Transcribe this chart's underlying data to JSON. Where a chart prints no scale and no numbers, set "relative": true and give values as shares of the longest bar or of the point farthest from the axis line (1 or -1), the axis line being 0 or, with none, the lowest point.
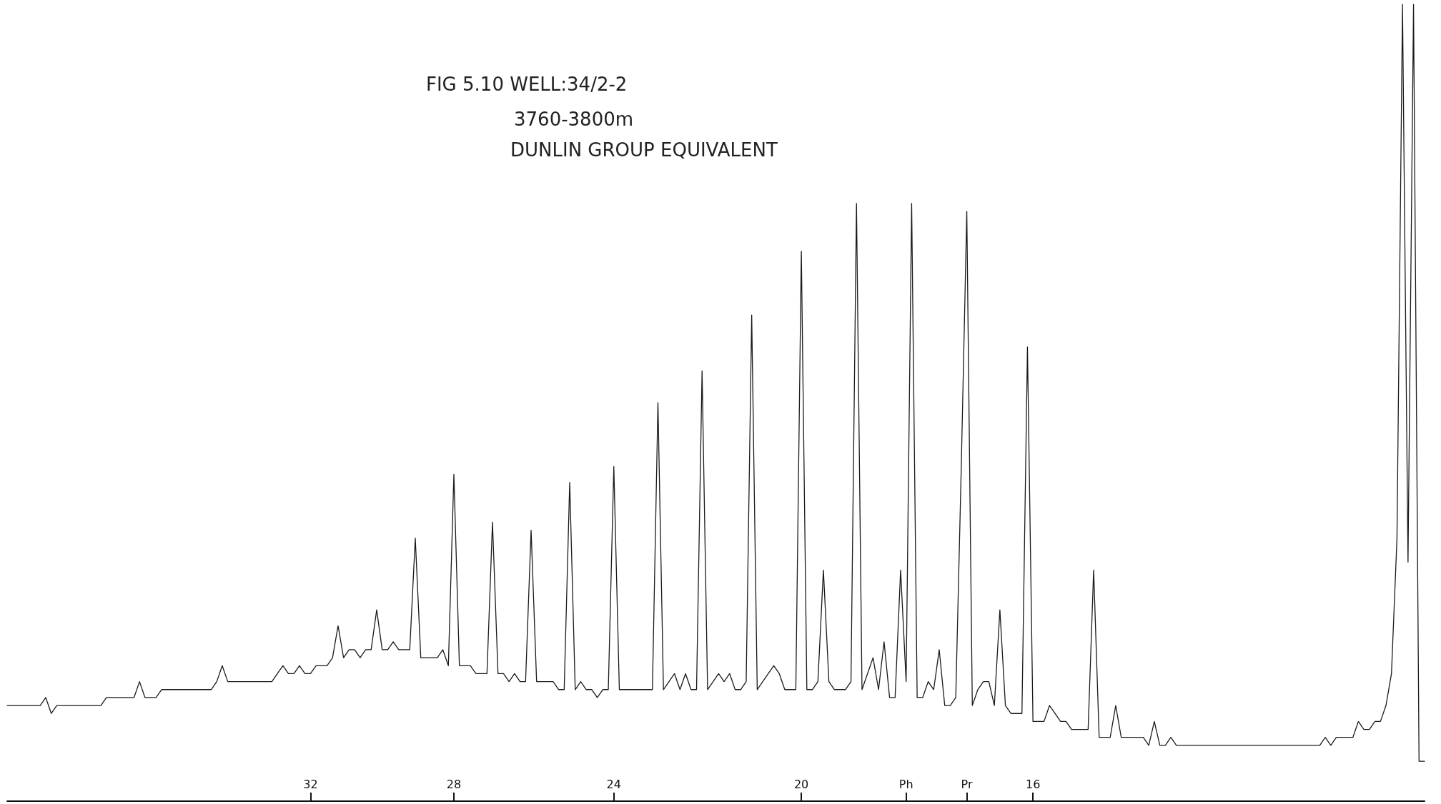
{
  "chart_data": {
    "type": "line",
    "relative": true,
    "marker": "none",
    "title": "FIG 5.10 WELL:34/2-2",
    "subtitle": "3760-3800m",
    "annotations": [
      "DUNLIN GROUP EQUIVALENT"
    ],
    "categories": [
      null,
      null,
      null,
      null,
      null,
      null,
      null,
      null,
      null,
      null,
      null,
      null,
      null,
      null,
      null,
      null,
      null,
      null,
      null,
      null,
      null,
      null,
      null,
      null,
      null,
      null,
      null,
      null,
      null,
      null,
      null,
      null,
      null,
      null,
      null,
      null,
      null,
      null,
      null,
      null,
      null,
      null,
      null,
      null,
      null,
      null,
      null,
      null,
      null,
      null,
      null,
      null,
      null,
      null,
      null,
      "32",
      null,
      null,
      null,
      null,
      null,
      null,
      null,
      null,
      null,
      null,
      null,
      null,
      null,
      null,
      null,
      null,
      null,
      null,
      null,
      null,
      null,
      null,
      null,
      null,
      null,
      "28",
      null,
      null,
      null,
      null,
      null,
      null,
      null,
      null,
      null,
      null,
      null,
      null,
      null,
      null,
      null,
      null,
      null,
      null,
      null,
      null,
      null,
      null,
      null,
      null,
      null,
      null,
      null,
      null,
      "24",
      null,
      null,
      null,
      null,
      null,
      null,
      null,
      null,
      null,
      null,
      null,
      null,
      null,
      null,
      null,
      null,
      null,
      null,
      null,
      null,
      null,
      null,
      null,
      null,
      null,
      null,
      null,
      null,
      null,
      null,
      null,
      null,
      null,
      "20",
      null,
      null,
      null,
      null,
      null,
      null,
      null,
      null,
      null,
      null,
      null,
      null,
      null,
      null,
      null,
      null,
      null,
      null,
      "Ph",
      null,
      null,
      null,
      null,
      null,
      null,
      null,
      null,
      null,
      null,
      "Pr",
      null,
      null,
      null,
      null,
      null,
      null,
      null,
      null,
      null,
      null,
      null,
      "16",
      null,
      null,
      null,
      null,
      null,
      null,
      null,
      null,
      null,
      null,
      null,
      null,
      null,
      null,
      null,
      null,
      null,
      null,
      null,
      null,
      null,
      null,
      null,
      null,
      null,
      null,
      null,
      null,
      null,
      null,
      null,
      null,
      null,
      null,
      null,
      null,
      null,
      null,
      null,
      null,
      null,
      null,
      null,
      null,
      null,
      null,
      null,
      null,
      null,
      null,
      null,
      null,
      null,
      null,
      null,
      null,
      null,
      null,
      null,
      null,
      null,
      null,
      null,
      null,
      null,
      null,
      null,
      null,
      null,
      null,
      null
    ],
    "series": [
      {
        "color": "#1a1a1a",
        "values": [
          0.12,
          0.12,
          0.12,
          0.12,
          0.12,
          0.12,
          0.12,
          0.13,
          0.11,
          0.12,
          0.12,
          0.12,
          0.12,
          0.12,
          0.12,
          0.12,
          0.12,
          0.12,
          0.13,
          0.13,
          0.13,
          0.13,
          0.13,
          0.13,
          0.15,
          0.13,
          0.13,
          0.13,
          0.14,
          0.14,
          0.14,
          0.14,
          0.14,
          0.14,
          0.14,
          0.14,
          0.14,
          0.14,
          0.15,
          0.17,
          0.15,
          0.15,
          0.15,
          0.15,
          0.15,
          0.15,
          0.15,
          0.15,
          0.15,
          0.16,
          0.17,
          0.16,
          0.16,
          0.17,
          0.16,
          0.16,
          0.17,
          0.17,
          0.17,
          0.18,
          0.22,
          0.18,
          0.19,
          0.19,
          0.18,
          0.19,
          0.19,
          0.24,
          0.19,
          0.19,
          0.2,
          0.19,
          0.19,
          0.19,
          0.33,
          0.18,
          0.18,
          0.18,
          0.18,
          0.19,
          0.17,
          0.41,
          0.17,
          0.17,
          0.17,
          0.16,
          0.16,
          0.16,
          0.35,
          0.16,
          0.16,
          0.15,
          0.16,
          0.15,
          0.15,
          0.34,
          0.15,
          0.15,
          0.15,
          0.15,
          0.14,
          0.14,
          0.4,
          0.14,
          0.15,
          0.14,
          0.14,
          0.13,
          0.14,
          0.14,
          0.42,
          0.14,
          0.14,
          0.14,
          0.14,
          0.14,
          0.14,
          0.14,
          0.5,
          0.14,
          0.15,
          0.16,
          0.14,
          0.16,
          0.14,
          0.14,
          0.54,
          0.14,
          0.15,
          0.16,
          0.15,
          0.16,
          0.14,
          0.14,
          0.15,
          0.61,
          0.14,
          0.15,
          0.16,
          0.17,
          0.16,
          0.14,
          0.14,
          0.14,
          0.69,
          0.14,
          0.14,
          0.15,
          0.29,
          0.15,
          0.14,
          0.14,
          0.14,
          0.15,
          0.75,
          0.14,
          0.16,
          0.18,
          0.14,
          0.2,
          0.13,
          0.13,
          0.29,
          0.15,
          0.75,
          0.13,
          0.13,
          0.15,
          0.14,
          0.19,
          0.12,
          0.12,
          0.13,
          0.42,
          0.74,
          0.12,
          0.14,
          0.15,
          0.15,
          0.12,
          0.24,
          0.12,
          0.11,
          0.11,
          0.11,
          0.57,
          0.1,
          0.1,
          0.1,
          0.12,
          0.11,
          0.1,
          0.1,
          0.09,
          0.09,
          0.09,
          0.09,
          0.29,
          0.08,
          0.08,
          0.08,
          0.12,
          0.08,
          0.08,
          0.08,
          0.08,
          0.08,
          0.07,
          0.1,
          0.07,
          0.07,
          0.08,
          0.07,
          0.07,
          0.07,
          0.07,
          0.07,
          0.07,
          0.07,
          0.07,
          0.07,
          0.07,
          0.07,
          0.07,
          0.07,
          0.07,
          0.07,
          0.07,
          0.07,
          0.07,
          0.07,
          0.07,
          0.07,
          0.07,
          0.07,
          0.07,
          0.07,
          0.07,
          0.07,
          0.08,
          0.07,
          0.08,
          0.08,
          0.08,
          0.08,
          0.1,
          0.09,
          0.09,
          0.1,
          0.1,
          0.12,
          0.16,
          0.33,
          1,
          0.3,
          1,
          0.05,
          0.05
        ]
      }
    ]
  }
}
